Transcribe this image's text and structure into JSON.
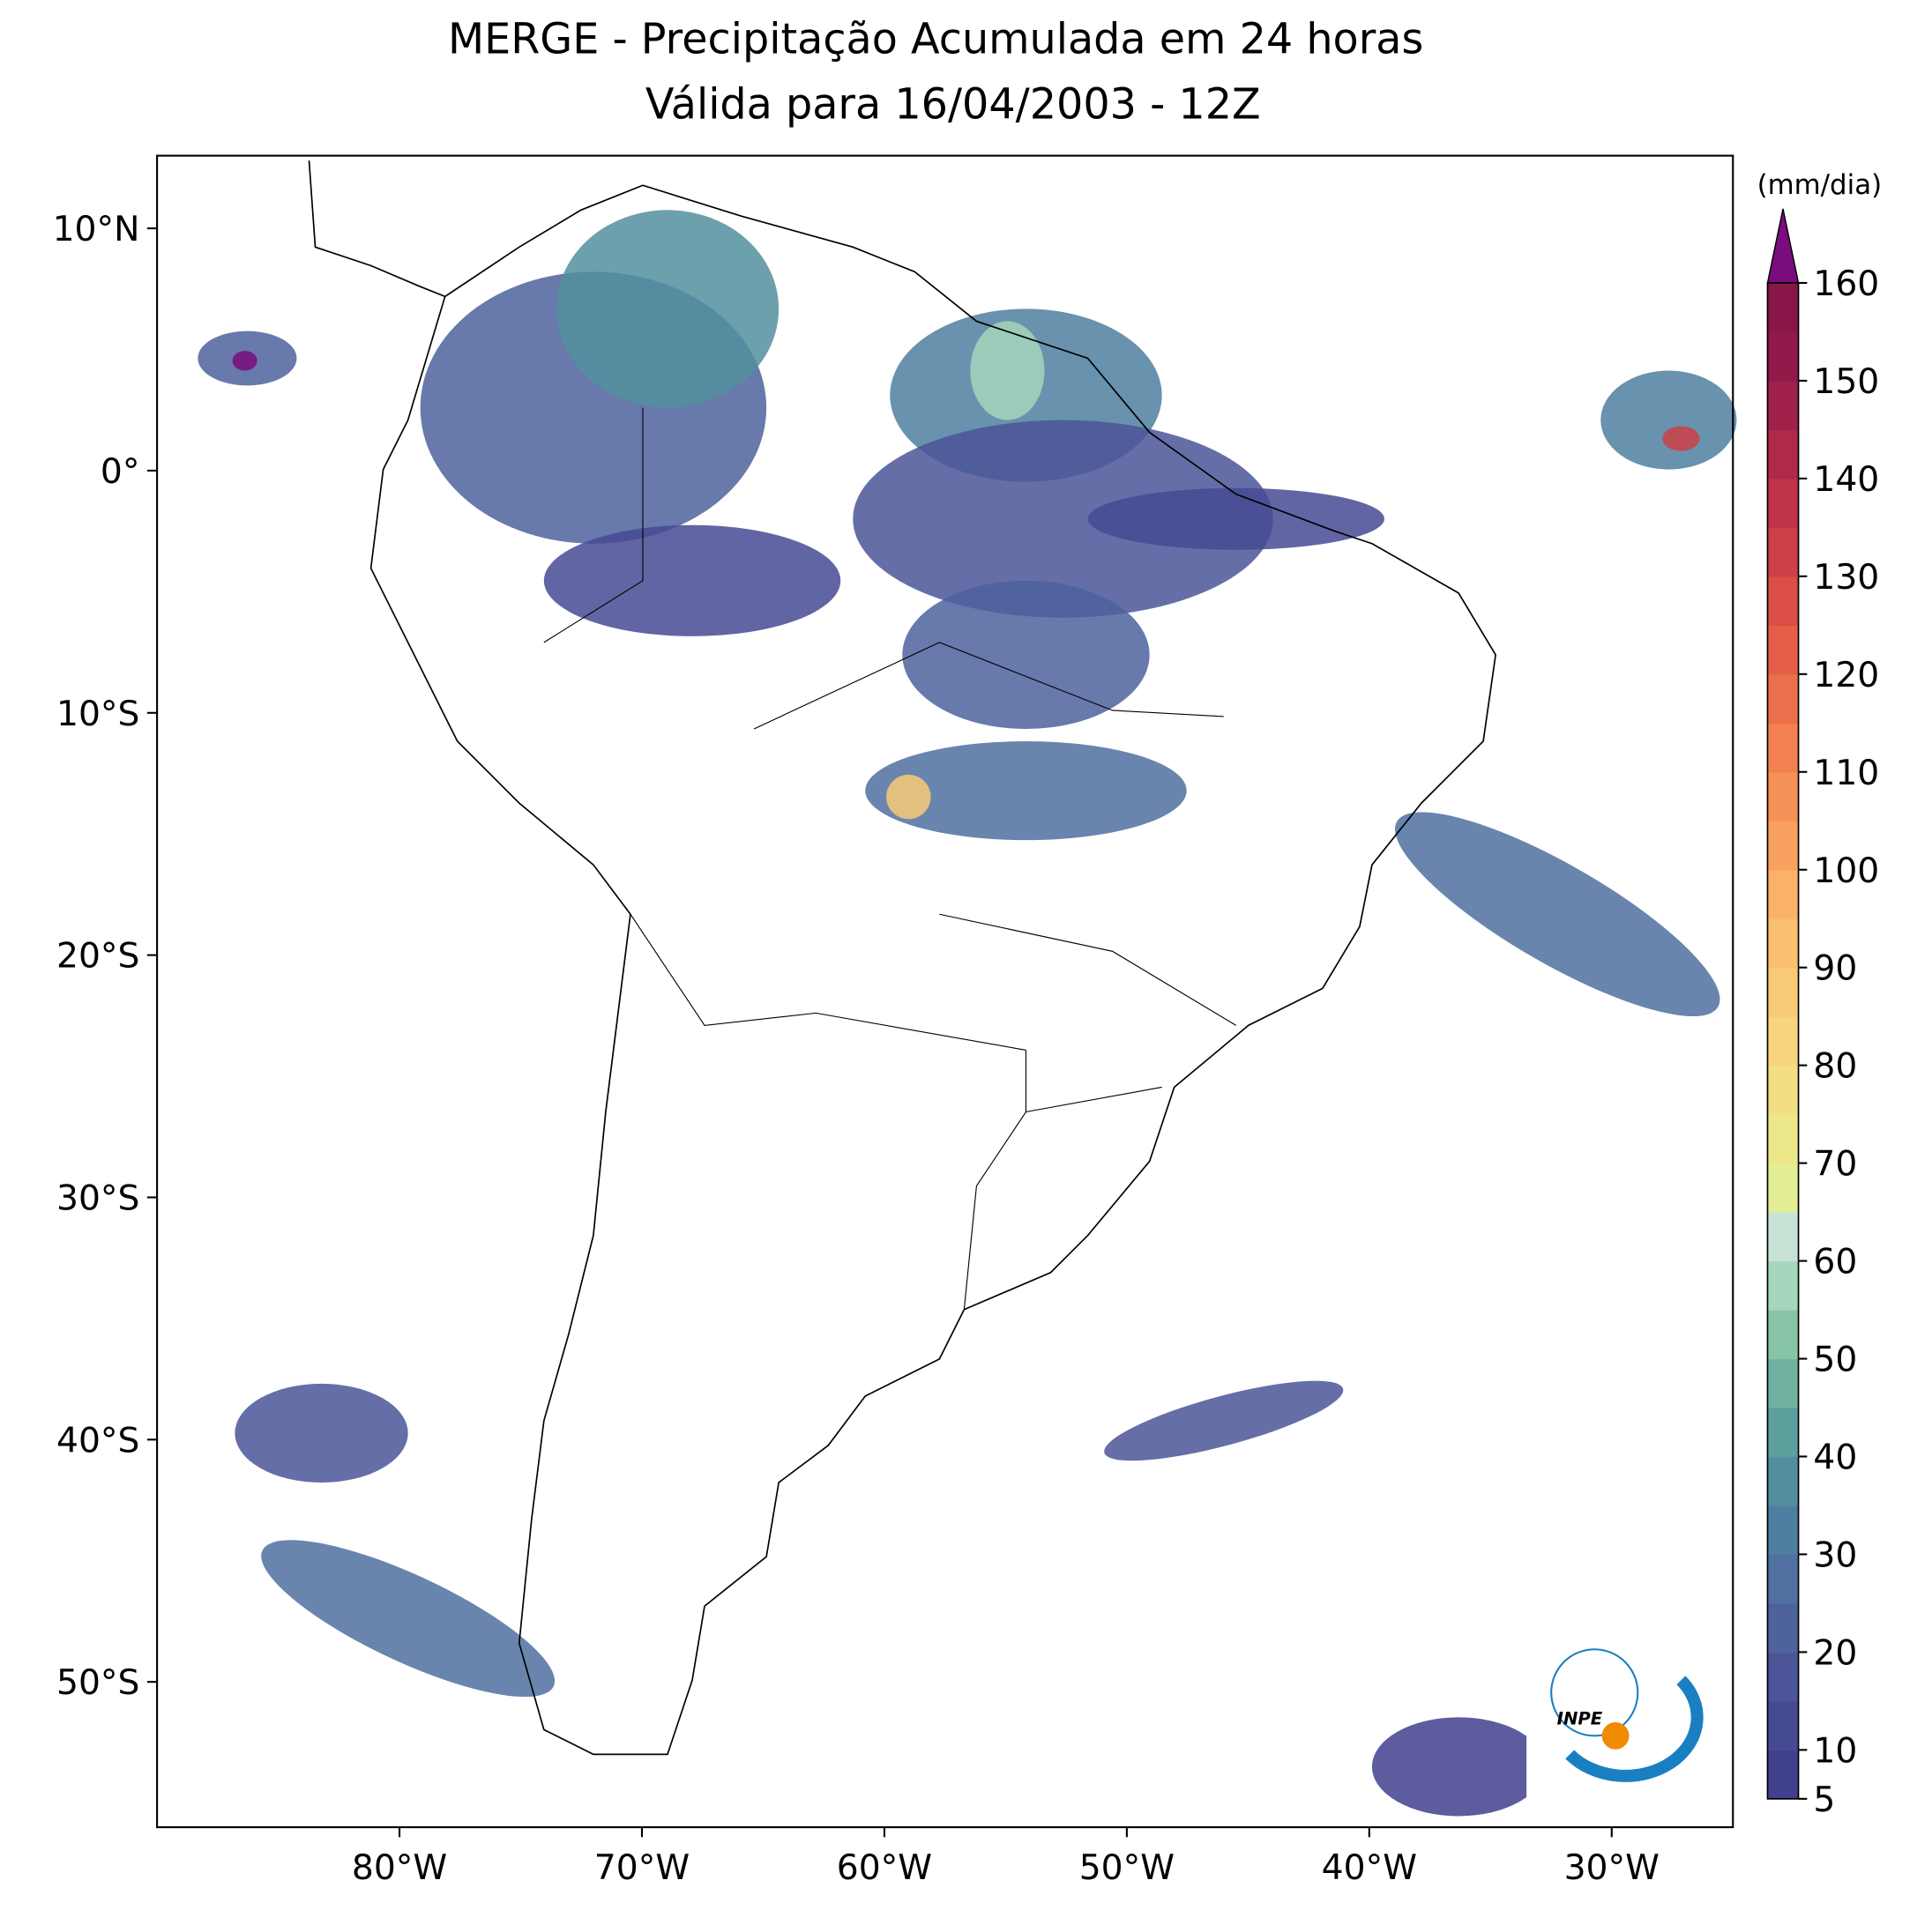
{
  "header": {
    "title_line1": "MERGE - Precipitação Acumulada em 24 horas",
    "title_line2": "Válida para 16/04/2003 - 12Z"
  },
  "map": {
    "xlim": [
      -90,
      -25
    ],
    "ylim": [
      -56,
      13
    ],
    "xticks": [
      {
        "value": -80,
        "label": "80°W"
      },
      {
        "value": -70,
        "label": "70°W"
      },
      {
        "value": -60,
        "label": "60°W"
      },
      {
        "value": -50,
        "label": "50°W"
      },
      {
        "value": -40,
        "label": "40°W"
      },
      {
        "value": -30,
        "label": "30°W"
      }
    ],
    "yticks": [
      {
        "value": 10,
        "label": "10°N"
      },
      {
        "value": 0,
        "label": "0°"
      },
      {
        "value": -10,
        "label": "10°S"
      },
      {
        "value": -20,
        "label": "20°S"
      },
      {
        "value": -30,
        "label": "30°S"
      },
      {
        "value": -40,
        "label": "40°S"
      },
      {
        "value": -50,
        "label": "50°S"
      }
    ]
  },
  "colorbar": {
    "label": "(mm/dia)",
    "lim": [
      5,
      160
    ],
    "ticks": [
      5,
      10,
      20,
      30,
      40,
      50,
      60,
      70,
      80,
      90,
      100,
      110,
      120,
      130,
      140,
      150,
      160
    ],
    "colors": [
      "#40408e",
      "#464a93",
      "#4b5598",
      "#4e629c",
      "#4f70a0",
      "#4e7fa0",
      "#528f9e",
      "#5d9f9d",
      "#6fb1a0",
      "#88c5a8",
      "#a6d6bb",
      "#c6e3d6",
      "#e3ed94",
      "#ece88a",
      "#f2de83",
      "#f7d47d",
      "#f9ca76",
      "#fbbf70",
      "#fbb168",
      "#f9a15f",
      "#f69157",
      "#f28050",
      "#ec6f4b",
      "#e55e48",
      "#da4e47",
      "#cd4047",
      "#bf3448",
      "#af2a48",
      "#9f2149",
      "#911a4b",
      "#881649"
    ],
    "extend_color": "#7b0c7e"
  },
  "logo": "INPE"
}
